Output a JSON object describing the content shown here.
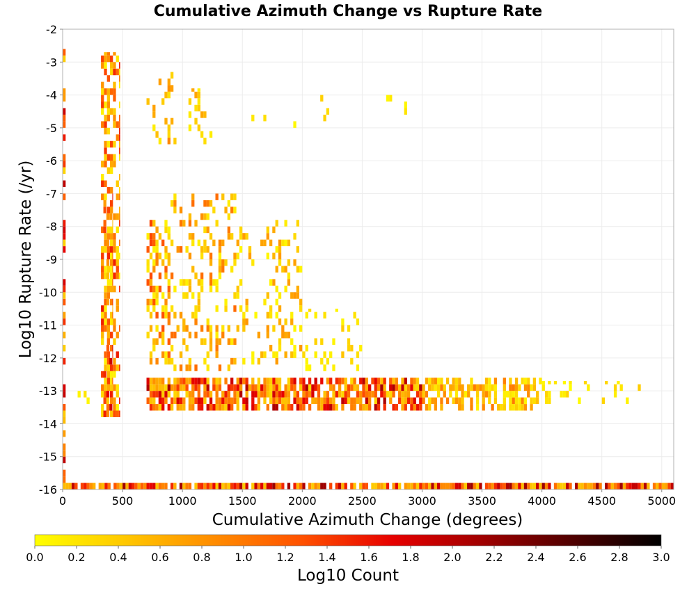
{
  "chart_data": {
    "type": "heatmap",
    "title": "Cumulative Azimuth Change vs Rupture Rate",
    "xlabel": "Cumulative Azimuth Change (degrees)",
    "ylabel": "Log10 Rupture Rate (/yr)",
    "xlim": [
      0,
      5100
    ],
    "ylim": [
      -16,
      -2
    ],
    "x_ticks": [
      "0",
      "500",
      "1000",
      "1500",
      "2000",
      "2500",
      "3000",
      "3500",
      "4000",
      "4500",
      "5000"
    ],
    "y_ticks": [
      "-2",
      "-3",
      "-4",
      "-5",
      "-6",
      "-7",
      "-8",
      "-9",
      "-10",
      "-11",
      "-12",
      "-13",
      "-14",
      "-15",
      "-16"
    ],
    "grid": true,
    "colorbar": {
      "label": "Log10 Count",
      "range": [
        0.0,
        3.0
      ],
      "ticks": [
        "0.0",
        "0.2",
        "0.4",
        "0.6",
        "0.8",
        "1.0",
        "1.2",
        "1.4",
        "1.6",
        "1.8",
        "2.0",
        "2.2",
        "2.4",
        "2.6",
        "2.8",
        "3.0"
      ],
      "colors": [
        "#ffff00",
        "#ffc800",
        "#ff8c00",
        "#ff5000",
        "#e60000",
        "#a00000",
        "#500000",
        "#000000"
      ],
      "placement": "bottom"
    },
    "regions": [
      {
        "x": [
          0,
          25
        ],
        "y": [
          -16,
          -2
        ],
        "value": [
          0.3,
          2.0
        ],
        "density": 0.55
      },
      {
        "x": [
          320,
          480
        ],
        "y": [
          -13.8,
          -2.7
        ],
        "value": [
          0.1,
          1.6
        ],
        "density": 0.5
      },
      {
        "x": [
          340,
          420
        ],
        "y": [
          -13.8,
          -7
        ],
        "value": [
          0.4,
          1.9
        ],
        "density": 0.55
      },
      {
        "x": [
          700,
          900
        ],
        "y": [
          -12.2,
          -7.8
        ],
        "value": [
          0.1,
          1.4
        ],
        "density": 0.45
      },
      {
        "x": [
          700,
          950
        ],
        "y": [
          -5.5,
          -3.3
        ],
        "value": [
          0.1,
          0.9
        ],
        "density": 0.18
      },
      {
        "x": [
          900,
          1450
        ],
        "y": [
          -12.4,
          -7.0
        ],
        "value": [
          0.1,
          1.1
        ],
        "density": 0.25
      },
      {
        "x": [
          1050,
          1300
        ],
        "y": [
          -5.5,
          -3.8
        ],
        "value": [
          0.1,
          0.7
        ],
        "density": 0.16
      },
      {
        "x": [
          1450,
          2000
        ],
        "y": [
          -12.2,
          -7.8
        ],
        "value": [
          0.05,
          0.8
        ],
        "density": 0.2
      },
      {
        "x": [
          1500,
          2900
        ],
        "y": [
          -5.0,
          -4.0
        ],
        "value": [
          0.05,
          0.4
        ],
        "density": 0.05
      },
      {
        "x": [
          1900,
          2500
        ],
        "y": [
          -12.4,
          -10.5
        ],
        "value": [
          0.05,
          0.5
        ],
        "density": 0.1
      },
      {
        "x": [
          700,
          3000
        ],
        "y": [
          -13.6,
          -12.6
        ],
        "value": [
          0.3,
          2.1
        ],
        "density": 0.75
      },
      {
        "x": [
          3000,
          4000
        ],
        "y": [
          -13.6,
          -12.6
        ],
        "value": [
          0.1,
          1.0
        ],
        "density": 0.6
      },
      {
        "x": [
          4000,
          4850
        ],
        "y": [
          -13.4,
          -12.7
        ],
        "value": [
          0.0,
          0.4
        ],
        "density": 0.2
      },
      {
        "x": [
          100,
          320
        ],
        "y": [
          -13.4,
          -12.8
        ],
        "value": [
          0.0,
          0.3
        ],
        "density": 0.2
      },
      {
        "x": [
          0,
          5100
        ],
        "y": [
          -16.0,
          -15.8
        ],
        "value": [
          0.4,
          2.2
        ],
        "density": 0.9
      }
    ]
  }
}
